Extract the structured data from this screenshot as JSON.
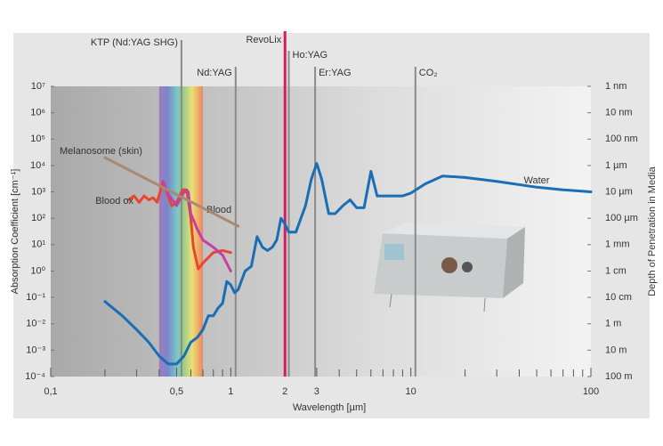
{
  "chart_data": {
    "type": "line",
    "xlabel": "Wavelength [µm]",
    "ylabel": "Absorption Coefficient [cm⁻¹]",
    "y2label": "Depth of Penetration in Media",
    "xscale": "log",
    "yscale": "log",
    "y2scale": "log",
    "xlim": [
      0.1,
      100
    ],
    "ylim": [
      0.0001,
      10000000
    ],
    "y2lim": [
      100,
      1e-09
    ],
    "xticks": [
      {
        "value": 0.1,
        "label": "0,1"
      },
      {
        "value": 0.5,
        "label": "0,5"
      },
      1,
      2,
      3,
      10,
      100
    ],
    "xminorticks": [
      0.2,
      0.3,
      0.4,
      0.6,
      0.7,
      0.8,
      0.9,
      4,
      5,
      6,
      7,
      8,
      9,
      20,
      30,
      40,
      50,
      60,
      70,
      80,
      90
    ],
    "yticks": [
      {
        "value": 0.0001,
        "label": "10⁻⁴"
      },
      {
        "value": 0.001,
        "label": "10⁻³"
      },
      {
        "value": 0.01,
        "label": "10⁻²"
      },
      {
        "value": 0.1,
        "label": "10⁻¹"
      },
      {
        "value": 1,
        "label": "10⁰"
      },
      {
        "value": 10,
        "label": "10¹"
      },
      {
        "value": 100,
        "label": "10²"
      },
      {
        "value": 1000,
        "label": "10³"
      },
      {
        "value": 10000,
        "label": "10⁴"
      },
      {
        "value": 100000,
        "label": "10⁵"
      },
      {
        "value": 1000000,
        "label": "10⁶"
      },
      {
        "value": 10000000,
        "label": "10⁷"
      }
    ],
    "y2ticks": [
      {
        "value": 1e-09,
        "label": "1 nm"
      },
      {
        "value": 1e-08,
        "label": "10 nm"
      },
      {
        "value": 1e-07,
        "label": "100 nm"
      },
      {
        "value": 1e-06,
        "label": "1 µm"
      },
      {
        "value": 1e-05,
        "label": "10 µm"
      },
      {
        "value": 0.0001,
        "label": "100 µm"
      },
      {
        "value": 0.001,
        "label": "1 mm"
      },
      {
        "value": 0.01,
        "label": "1 cm"
      },
      {
        "value": 0.1,
        "label": "10 cm"
      },
      {
        "value": 1,
        "label": "1 m"
      },
      {
        "value": 10,
        "label": "10 m"
      },
      {
        "value": 100,
        "label": "100 m"
      }
    ],
    "visible_band": [
      0.4,
      0.7
    ],
    "lasers": [
      {
        "name": "KTP (Nd:YAG SHG)",
        "wavelength": 0.532,
        "color": "#8a8a8a"
      },
      {
        "name": "Nd:YAG",
        "wavelength": 1.064,
        "color": "#8a8a8a"
      },
      {
        "name": "RevoLix",
        "wavelength": 2.0,
        "color": "#d81b60"
      },
      {
        "name": "Ho:YAG",
        "wavelength": 2.1,
        "color": "#8a8a8a"
      },
      {
        "name": "Er:YAG",
        "wavelength": 2.94,
        "color": "#8a8a8a"
      },
      {
        "name": "CO₂",
        "wavelength": 10.6,
        "color": "#8a8a8a"
      }
    ],
    "series": [
      {
        "name": "Water",
        "color": "#1a6eb5",
        "x": [
          0.2,
          0.25,
          0.3,
          0.35,
          0.4,
          0.45,
          0.5,
          0.55,
          0.6,
          0.65,
          0.7,
          0.75,
          0.8,
          0.85,
          0.9,
          0.95,
          1.0,
          1.05,
          1.1,
          1.2,
          1.3,
          1.4,
          1.5,
          1.6,
          1.7,
          1.8,
          1.9,
          2.0,
          2.1,
          2.3,
          2.6,
          2.8,
          3.0,
          3.2,
          3.5,
          3.8,
          4.2,
          4.6,
          5.0,
          5.5,
          6.0,
          6.5,
          7.0,
          8.0,
          9.0,
          10,
          12,
          15,
          20,
          30,
          50,
          70,
          100
        ],
        "values": [
          0.07,
          0.02,
          0.006,
          0.002,
          0.0006,
          0.0003,
          0.0003,
          0.0006,
          0.002,
          0.003,
          0.006,
          0.02,
          0.02,
          0.04,
          0.06,
          0.4,
          0.3,
          0.15,
          0.2,
          1,
          1.5,
          20,
          8,
          6,
          8,
          15,
          100,
          60,
          30,
          30,
          300,
          3000,
          12000,
          3000,
          150,
          150,
          300,
          500,
          250,
          250,
          6000,
          700,
          700,
          700,
          700,
          900,
          2000,
          4000,
          3500,
          2500,
          1500,
          1200,
          1000
        ]
      },
      {
        "name": "Blood ox",
        "color": "#e8462f",
        "x": [
          0.27,
          0.29,
          0.31,
          0.33,
          0.35,
          0.37,
          0.39,
          0.42,
          0.44,
          0.47,
          0.5,
          0.54,
          0.57,
          0.6,
          0.62,
          0.66,
          0.7,
          0.8,
          0.9,
          1.0
        ],
        "values": [
          500,
          700,
          400,
          700,
          500,
          600,
          400,
          2500,
          1000,
          300,
          400,
          1200,
          1200,
          100,
          8,
          1.2,
          2,
          5,
          6,
          5
        ]
      },
      {
        "name": "Blood",
        "color": "#c43fa6",
        "x": [
          0.42,
          0.45,
          0.5,
          0.55,
          0.58,
          0.6,
          0.65,
          0.7,
          0.8,
          0.9,
          1.0
        ],
        "values": [
          2500,
          800,
          300,
          1000,
          1000,
          150,
          40,
          15,
          8,
          4,
          1
        ]
      },
      {
        "name": "Melanosome (skin)",
        "color": "#a88a72",
        "x": [
          0.2,
          1.1
        ],
        "values": [
          20000,
          50
        ]
      }
    ]
  }
}
